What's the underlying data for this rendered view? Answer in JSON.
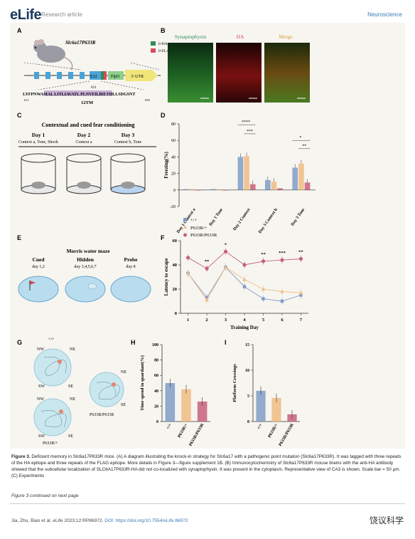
{
  "header": {
    "logo": "eLife",
    "subtitle": "Research article",
    "section": "Neuroscience"
  },
  "panelA": {
    "label": "A",
    "mouse_name": "Slc6a17P633R",
    "legend": [
      "3×HA",
      "3×FLAG"
    ],
    "exon": "E12",
    "construct": [
      "FlpO",
      "3'-UTR"
    ],
    "pos_631": "631",
    "sequence": "LYFPNWAMAL LITLIAVATL PLNVFILRH FHLLSDGSNT",
    "pos_611": "611",
    "pos_650": "650",
    "tm": "12TM"
  },
  "panelB": {
    "label": "B",
    "titles": [
      "Synaptophysin",
      "HA",
      "Merge"
    ]
  },
  "panelC": {
    "label": "C",
    "title": "Contextual and cued fear conditioning",
    "days": [
      {
        "day": "Day 1",
        "desc": "Context a, Tone, Shock"
      },
      {
        "day": "Day 2",
        "desc": "Context a"
      },
      {
        "day": "Day 3",
        "desc": "Context b, Tone"
      }
    ]
  },
  "panelD": {
    "label": "D",
    "chart_data": {
      "type": "bar",
      "ylabel": "Freezing(%)",
      "ylim": [
        -20,
        80
      ],
      "yticks": [
        -20,
        0,
        20,
        40,
        60,
        80
      ],
      "categories": [
        "Day 1 Context a",
        "Day 1 Tone",
        "Day 2 Context",
        "Day 3 Context b",
        "Day 3 Tone"
      ],
      "series": [
        {
          "name": "+/+",
          "values": [
            1,
            1,
            40,
            12,
            27
          ],
          "color": "#7f9cc7"
        },
        {
          "name": "P633R/+",
          "values": [
            1,
            1,
            41,
            10,
            32
          ],
          "color": "#efbc82"
        },
        {
          "name": "P633R/P633R",
          "values": [
            0,
            0,
            7,
            2,
            9
          ],
          "color": "#c7607a"
        }
      ],
      "significance": [
        "****",
        "***",
        "*",
        "**"
      ]
    }
  },
  "legend": [
    "+/+",
    "P633R/+",
    "P633R/P633R"
  ],
  "panelE": {
    "label": "E",
    "title": "Morris water maze",
    "phases": [
      {
        "name": "Cued",
        "days": "day 1,2"
      },
      {
        "name": "Hidden",
        "days": "day 3,4,5,6,7"
      },
      {
        "name": "Probe",
        "days": "day 8"
      }
    ]
  },
  "panelF": {
    "label": "F",
    "chart_data": {
      "type": "line",
      "xlabel": "Training Day",
      "ylabel": "Latency to escape",
      "x": [
        1,
        2,
        3,
        4,
        5,
        6,
        7
      ],
      "ylim": [
        0,
        60
      ],
      "yticks": [
        0,
        20,
        40,
        60
      ],
      "series": [
        {
          "name": "+/+",
          "values": [
            33,
            13,
            38,
            22,
            12,
            10,
            15
          ],
          "color": "#7f9cc7"
        },
        {
          "name": "P633R/+",
          "values": [
            33,
            11,
            38,
            28,
            20,
            18,
            17
          ],
          "color": "#efbc82"
        },
        {
          "name": "P633R/P633R",
          "values": [
            46,
            37,
            51,
            40,
            43,
            44,
            45
          ],
          "color": "#c7607a"
        }
      ],
      "significance": [
        {
          "day": 2,
          "mark": "**"
        },
        {
          "day": 3,
          "mark": "*"
        },
        {
          "day": 5,
          "mark": "**"
        },
        {
          "day": 6,
          "mark": "***"
        },
        {
          "day": 7,
          "mark": "**"
        }
      ]
    }
  },
  "panelG": {
    "label": "G",
    "quadrants": [
      "NW",
      "NE",
      "SW",
      "SE"
    ],
    "genotypes": [
      "+/+",
      "P633R/+",
      "P633R/P633R"
    ]
  },
  "panelH": {
    "label": "H",
    "chart_data": {
      "type": "bar",
      "ylabel": "Time spend in quardant(%)",
      "ylim": [
        0,
        100
      ],
      "yticks": [
        0,
        20,
        40,
        60,
        80,
        100
      ],
      "categories": [
        "+/+",
        "P633R/+",
        "P633R/P633R"
      ],
      "values": [
        50,
        42,
        26
      ]
    }
  },
  "panelI": {
    "label": "I",
    "chart_data": {
      "type": "bar",
      "ylabel": "Platform Crossings",
      "ylim": [
        0,
        15
      ],
      "yticks": [
        0,
        5,
        10,
        15
      ],
      "categories": [
        "+/+",
        "P633R/+",
        "P633R/P633R"
      ],
      "values": [
        6,
        4.6,
        1.4
      ]
    }
  },
  "caption": {
    "lead": "Figure 3.",
    "text": " Deficient memory in Slc6a17P633R mice. (A) A diagram illustrating the knock-in strategy for Slc6a17 with a pathogenic point mutation (Slc6a17P633R). It was tagged with three repeats of the HA epitope and three repeats of the FLAG epitope. More details in Figure 3—figure supplement 1B. (B) Immunocytochemistry of Slc6a17P633R mouse brains with the anti-HA antibody showed that the subcellular localization of SLC6A17P633R-HA did not co-localized with synaptophysin. It was present in the cytoplasm. Representative view of CA3 is shown. Scale bar = 50 μm. (C) Experiments",
    "continued": "Figure 3 continued on next page"
  },
  "footer": {
    "citation": "Jia, Zhu, Bian et al. eLife 2023;12:RP86972.",
    "doi": "DOI: https://doi.org/10.7554/eLife.86972",
    "watermark": "饶议科学"
  }
}
